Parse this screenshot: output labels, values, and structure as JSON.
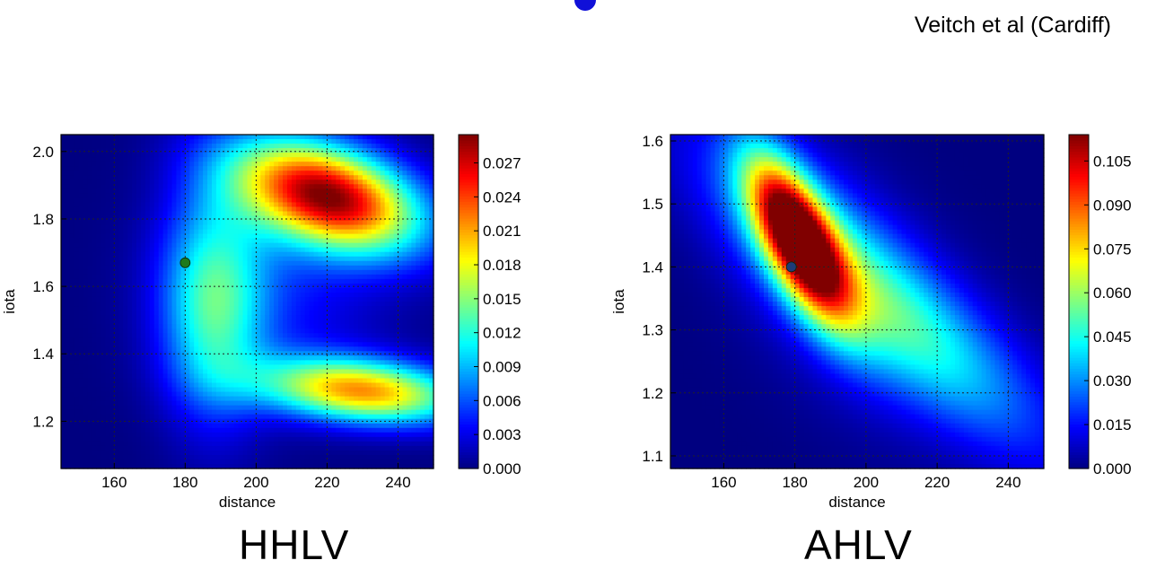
{
  "credit": "Veitch et al (Cardiff)",
  "chart_data": [
    {
      "type": "heatmap",
      "panel_label": "HHLV",
      "xlabel": "distance",
      "ylabel": "iota",
      "xlim": [
        145,
        250
      ],
      "ylim": [
        1.06,
        2.05
      ],
      "xticks": [
        160,
        180,
        200,
        220,
        240
      ],
      "yticks": [
        1.2,
        1.4,
        1.6,
        1.8,
        2.0
      ],
      "ytick_labels": [
        "1.2",
        "1.4",
        "1.6",
        "1.8",
        "2.0"
      ],
      "grid": true,
      "colorbar": {
        "min": 0.0,
        "max": 0.0295,
        "ticks": [
          0.0,
          0.003,
          0.006,
          0.009,
          0.012,
          0.015,
          0.018,
          0.021,
          0.024,
          0.027
        ],
        "tick_labels": [
          "0.000",
          "0.003",
          "0.006",
          "0.009",
          "0.012",
          "0.015",
          "0.018",
          "0.021",
          "0.024",
          "0.027"
        ]
      },
      "peaks": [
        {
          "distance": 222,
          "iota": 1.88,
          "value": 0.029
        },
        {
          "distance": 235,
          "iota": 1.28,
          "value": 0.021
        },
        {
          "distance": 190,
          "iota": 1.55,
          "value": 0.013
        }
      ],
      "marker": {
        "distance": 180,
        "iota": 1.67,
        "color": "#1e7a1e"
      }
    },
    {
      "type": "heatmap",
      "panel_label": "AHLV",
      "xlabel": "distance",
      "ylabel": "iota",
      "xlim": [
        145,
        250
      ],
      "ylim": [
        1.08,
        1.61
      ],
      "xticks": [
        160,
        180,
        200,
        220,
        240
      ],
      "yticks": [
        1.1,
        1.2,
        1.3,
        1.4,
        1.5,
        1.6
      ],
      "ytick_labels": [
        "1.1",
        "1.2",
        "1.3",
        "1.4",
        "1.5",
        "1.6"
      ],
      "grid": true,
      "colorbar": {
        "min": 0.0,
        "max": 0.114,
        "ticks": [
          0.0,
          0.015,
          0.03,
          0.045,
          0.06,
          0.075,
          0.09,
          0.105
        ],
        "tick_labels": [
          "0.000",
          "0.015",
          "0.030",
          "0.045",
          "0.060",
          "0.075",
          "0.090",
          "0.105"
        ]
      },
      "peaks": [
        {
          "distance": 181,
          "iota": 1.45,
          "value": 0.114
        },
        {
          "distance": 212,
          "iota": 1.32,
          "value": 0.045
        }
      ],
      "marker": {
        "distance": 179,
        "iota": 1.4,
        "color": "#1e3c78"
      }
    }
  ]
}
